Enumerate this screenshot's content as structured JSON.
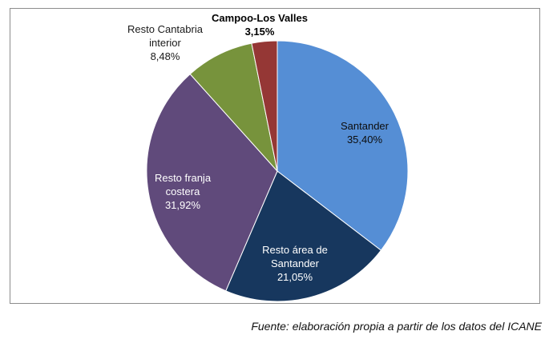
{
  "chart_data": {
    "type": "pie",
    "title": "",
    "slices": [
      {
        "label": "Santander",
        "value": 35.4,
        "value_label": "35,40%",
        "color": "#558ed5"
      },
      {
        "label": "Resto área de Santander",
        "value": 21.05,
        "value_label": "21,05%",
        "color": "#17375e"
      },
      {
        "label": "Resto franja costera",
        "value": 31.92,
        "value_label": "31,92%",
        "color": "#604a7b"
      },
      {
        "label": "Resto Cantabria interior",
        "value": 8.48,
        "value_label": "8,48%",
        "color": "#77933c"
      },
      {
        "label": "Campoo-Los Valles",
        "value": 3.15,
        "value_label": "3,15%",
        "color": "#953735"
      }
    ],
    "labels": {
      "santander": {
        "line1": "Santander",
        "line2": "35,40%"
      },
      "resto_area": {
        "line1": "Resto área de",
        "line2": "Santander",
        "line3": "21,05%"
      },
      "resto_franja": {
        "line1": "Resto franja",
        "line2": "costera",
        "line3": "31,92%"
      },
      "resto_cantabria": {
        "line1": "Resto Cantabria",
        "line2": "interior",
        "line3": "8,48%"
      },
      "campoo": {
        "line1": "Campoo-Los Valles",
        "line2": "3,15%"
      }
    }
  },
  "source_note": "Fuente: elaboración propia a partir de los datos del ICANE"
}
